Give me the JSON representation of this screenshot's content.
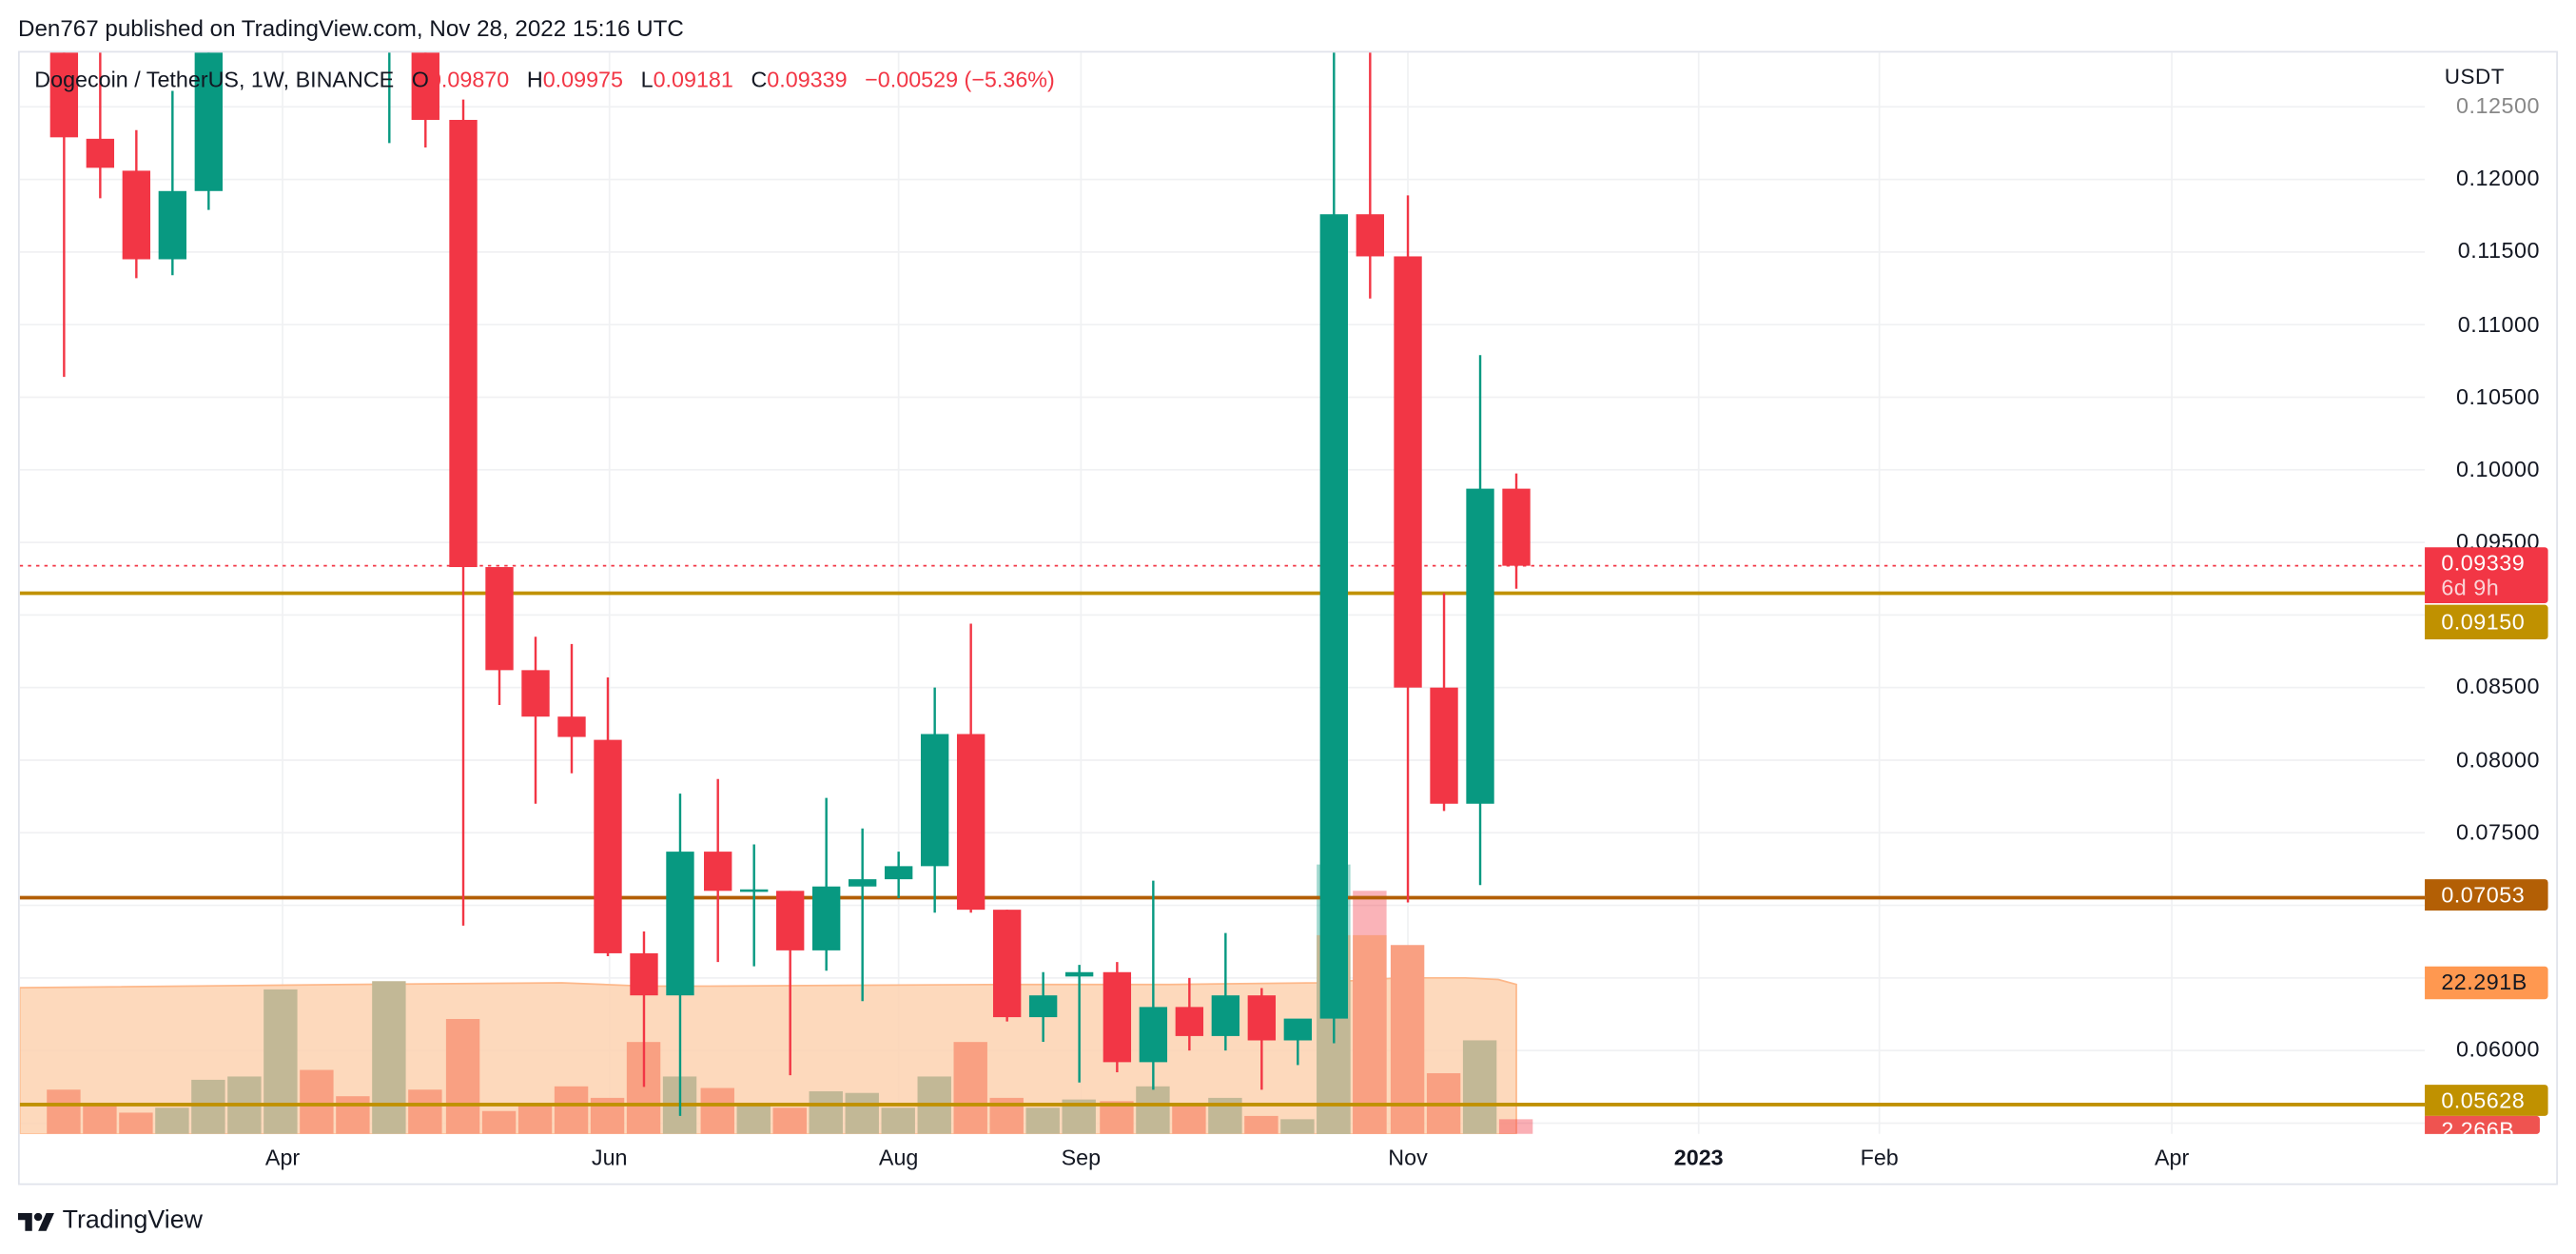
{
  "header": {
    "published_text": "Den767 published on TradingView.com, Nov 28, 2022 15:16 UTC"
  },
  "legend": {
    "symbol": "Dogecoin / TetherUS, 1W, BINANCE",
    "open_label": "O",
    "open": "0.09870",
    "high_label": "H",
    "high": "0.09975",
    "low_label": "L",
    "low": "0.09181",
    "close_label": "C",
    "close": "0.09339",
    "change": "−0.00529 (−5.36%)"
  },
  "price_axis": {
    "unit": "USDT",
    "ticks": [
      "0.12500",
      "0.12000",
      "0.11500",
      "0.11000",
      "0.10500",
      "0.10000",
      "0.09500",
      "0.08500",
      "0.08000",
      "0.07500",
      "0.06000"
    ],
    "current_price": "0.09339",
    "countdown": "6d 9h",
    "level_1": "0.09150",
    "level_2": "0.07053",
    "volume_ma": "22.291B",
    "level_3": "0.05628",
    "volume_current": "2.266B"
  },
  "time_axis": {
    "labels": [
      "Apr",
      "Jun",
      "Aug",
      "Sep",
      "Nov",
      "2023",
      "Feb",
      "Apr"
    ]
  },
  "footer": {
    "brand": "TradingView"
  },
  "colors": {
    "up": "#089981",
    "down": "#f23645",
    "level_gold": "#c09100",
    "level_brown": "#b35f05",
    "volume_up": "#c2b896",
    "volume_down": "#f9a082",
    "volume_ma_fill": "#fdd2b0",
    "volume_ma_tag": "#ff9850",
    "volume_current_tag": "#ef5350"
  },
  "chart_data": {
    "type": "candlestick",
    "title": "Dogecoin / TetherUS, 1W, BINANCE",
    "xlabel": "",
    "ylabel": "USDT",
    "ylim": [
      0.0535,
      0.1277
    ],
    "x_ticks": [
      "Apr",
      "Jun",
      "Aug",
      "Sep",
      "Nov",
      "2023",
      "Feb",
      "Apr"
    ],
    "y_ticks": [
      0.125,
      0.12,
      0.115,
      0.11,
      0.105,
      0.1,
      0.095,
      0.085,
      0.08,
      0.075,
      0.06
    ],
    "horizontal_levels": [
      0.0915,
      0.07053,
      0.05628
    ],
    "last": {
      "open": 0.0987,
      "high": 0.09975,
      "low": 0.09181,
      "close": 0.09339,
      "change": -0.00529,
      "change_pct": -5.36
    },
    "candles": [
      {
        "x": 38,
        "o": 0.13,
        "h": 0.13,
        "l": 0.1064,
        "c": 0.1229
      },
      {
        "x": 60,
        "o": 0.1228,
        "h": 0.13,
        "l": 0.1187,
        "c": 0.1208
      },
      {
        "x": 82,
        "o": 0.1206,
        "h": 0.1234,
        "l": 0.1132,
        "c": 0.1145
      },
      {
        "x": 104,
        "o": 0.1145,
        "h": 0.1261,
        "l": 0.1134,
        "c": 0.1192
      },
      {
        "x": 126,
        "o": 0.1192,
        "h": 0.13,
        "l": 0.1179,
        "c": 0.13
      },
      {
        "x": 236,
        "o": 0.13,
        "h": 0.13,
        "l": 0.1225,
        "c": 0.13
      },
      {
        "x": 258,
        "o": 0.13,
        "h": 0.13,
        "l": 0.1222,
        "c": 0.1241
      },
      {
        "x": 281,
        "o": 0.1241,
        "h": 0.1255,
        "l": 0.0686,
        "c": 0.0933
      },
      {
        "x": 303,
        "o": 0.0933,
        "h": 0.0933,
        "l": 0.0838,
        "c": 0.0862
      },
      {
        "x": 325,
        "o": 0.0862,
        "h": 0.0885,
        "l": 0.077,
        "c": 0.083
      },
      {
        "x": 347,
        "o": 0.083,
        "h": 0.088,
        "l": 0.0791,
        "c": 0.0816
      },
      {
        "x": 369,
        "o": 0.0814,
        "h": 0.0857,
        "l": 0.0665,
        "c": 0.0667
      },
      {
        "x": 391,
        "o": 0.0667,
        "h": 0.0682,
        "l": 0.0575,
        "c": 0.0638
      },
      {
        "x": 413,
        "o": 0.0638,
        "h": 0.0777,
        "l": 0.0555,
        "c": 0.0737
      },
      {
        "x": 436,
        "o": 0.0737,
        "h": 0.0787,
        "l": 0.0661,
        "c": 0.071
      },
      {
        "x": 458,
        "o": 0.071,
        "h": 0.0742,
        "l": 0.0658,
        "c": 0.0711
      },
      {
        "x": 480,
        "o": 0.071,
        "h": 0.071,
        "l": 0.0583,
        "c": 0.0669
      },
      {
        "x": 502,
        "o": 0.0669,
        "h": 0.0774,
        "l": 0.0655,
        "c": 0.0713
      },
      {
        "x": 524,
        "o": 0.0713,
        "h": 0.0753,
        "l": 0.0634,
        "c": 0.0718
      },
      {
        "x": 546,
        "o": 0.0718,
        "h": 0.0737,
        "l": 0.0705,
        "c": 0.0727
      },
      {
        "x": 568,
        "o": 0.0727,
        "h": 0.085,
        "l": 0.0695,
        "c": 0.0818
      },
      {
        "x": 590,
        "o": 0.0818,
        "h": 0.0894,
        "l": 0.0695,
        "c": 0.0697
      },
      {
        "x": 612,
        "o": 0.0697,
        "h": 0.0697,
        "l": 0.062,
        "c": 0.0623
      },
      {
        "x": 634,
        "o": 0.0623,
        "h": 0.0654,
        "l": 0.0606,
        "c": 0.0638
      },
      {
        "x": 656,
        "o": 0.0651,
        "h": 0.0659,
        "l": 0.0578,
        "c": 0.0654
      },
      {
        "x": 679,
        "o": 0.0654,
        "h": 0.0661,
        "l": 0.0585,
        "c": 0.0592
      },
      {
        "x": 701,
        "o": 0.0592,
        "h": 0.0717,
        "l": 0.0573,
        "c": 0.063
      },
      {
        "x": 723,
        "o": 0.063,
        "h": 0.065,
        "l": 0.06,
        "c": 0.061
      },
      {
        "x": 745,
        "o": 0.061,
        "h": 0.0681,
        "l": 0.06,
        "c": 0.0638
      },
      {
        "x": 767,
        "o": 0.0638,
        "h": 0.0643,
        "l": 0.0573,
        "c": 0.0607
      },
      {
        "x": 789,
        "o": 0.0607,
        "h": 0.0621,
        "l": 0.059,
        "c": 0.0622
      },
      {
        "x": 811,
        "o": 0.0622,
        "h": 0.13,
        "l": 0.0605,
        "c": 0.1176
      },
      {
        "x": 833,
        "o": 0.1176,
        "h": 0.13,
        "l": 0.1118,
        "c": 0.1147
      },
      {
        "x": 856,
        "o": 0.1147,
        "h": 0.1189,
        "l": 0.0702,
        "c": 0.085
      },
      {
        "x": 878,
        "o": 0.085,
        "h": 0.0915,
        "l": 0.0765,
        "c": 0.077
      },
      {
        "x": 900,
        "o": 0.077,
        "h": 0.1079,
        "l": 0.0714,
        "c": 0.0987
      },
      {
        "x": 922,
        "o": 0.0987,
        "h": 0.09975,
        "l": 0.09181,
        "c": 0.09339
      }
    ],
    "volume": {
      "baseline_y": 689,
      "ma_label": "22.291B",
      "last_label": "2.266B",
      "bars": [
        {
          "x": 38,
          "top": 662,
          "dir": "down"
        },
        {
          "x": 60,
          "top": 672,
          "dir": "down"
        },
        {
          "x": 82,
          "top": 676,
          "dir": "down"
        },
        {
          "x": 104,
          "top": 673,
          "dir": "up"
        },
        {
          "x": 126,
          "top": 656,
          "dir": "up"
        },
        {
          "x": 148,
          "top": 654,
          "dir": "up"
        },
        {
          "x": 170,
          "top": 601,
          "dir": "up"
        },
        {
          "x": 192,
          "top": 650,
          "dir": "down"
        },
        {
          "x": 214,
          "top": 666,
          "dir": "down"
        },
        {
          "x": 236,
          "top": 596,
          "dir": "up"
        },
        {
          "x": 258,
          "top": 662,
          "dir": "down"
        },
        {
          "x": 281,
          "top": 619,
          "dir": "down"
        },
        {
          "x": 303,
          "top": 675,
          "dir": "down"
        },
        {
          "x": 325,
          "top": 670,
          "dir": "down"
        },
        {
          "x": 347,
          "top": 660,
          "dir": "down"
        },
        {
          "x": 369,
          "top": 667,
          "dir": "down"
        },
        {
          "x": 391,
          "top": 633,
          "dir": "down"
        },
        {
          "x": 413,
          "top": 654,
          "dir": "up"
        },
        {
          "x": 436,
          "top": 661,
          "dir": "down"
        },
        {
          "x": 458,
          "top": 672,
          "dir": "up"
        },
        {
          "x": 480,
          "top": 673,
          "dir": "down"
        },
        {
          "x": 502,
          "top": 663,
          "dir": "up"
        },
        {
          "x": 524,
          "top": 664,
          "dir": "up"
        },
        {
          "x": 546,
          "top": 673,
          "dir": "up"
        },
        {
          "x": 568,
          "top": 654,
          "dir": "up"
        },
        {
          "x": 590,
          "top": 633,
          "dir": "down"
        },
        {
          "x": 612,
          "top": 667,
          "dir": "down"
        },
        {
          "x": 634,
          "top": 673,
          "dir": "up"
        },
        {
          "x": 656,
          "top": 668,
          "dir": "up"
        },
        {
          "x": 679,
          "top": 669,
          "dir": "down"
        },
        {
          "x": 701,
          "top": 660,
          "dir": "up"
        },
        {
          "x": 723,
          "top": 672,
          "dir": "down"
        },
        {
          "x": 745,
          "top": 667,
          "dir": "up"
        },
        {
          "x": 767,
          "top": 678,
          "dir": "down"
        },
        {
          "x": 789,
          "top": 680,
          "dir": "up"
        },
        {
          "x": 811,
          "top": 525,
          "dir": "up"
        },
        {
          "x": 833,
          "top": 541,
          "dir": "down"
        },
        {
          "x": 856,
          "top": 574,
          "dir": "down"
        },
        {
          "x": 878,
          "top": 652,
          "dir": "down"
        },
        {
          "x": 900,
          "top": 632,
          "dir": "up"
        },
        {
          "x": 922,
          "top": 680,
          "dir": "down_current"
        }
      ]
    }
  }
}
